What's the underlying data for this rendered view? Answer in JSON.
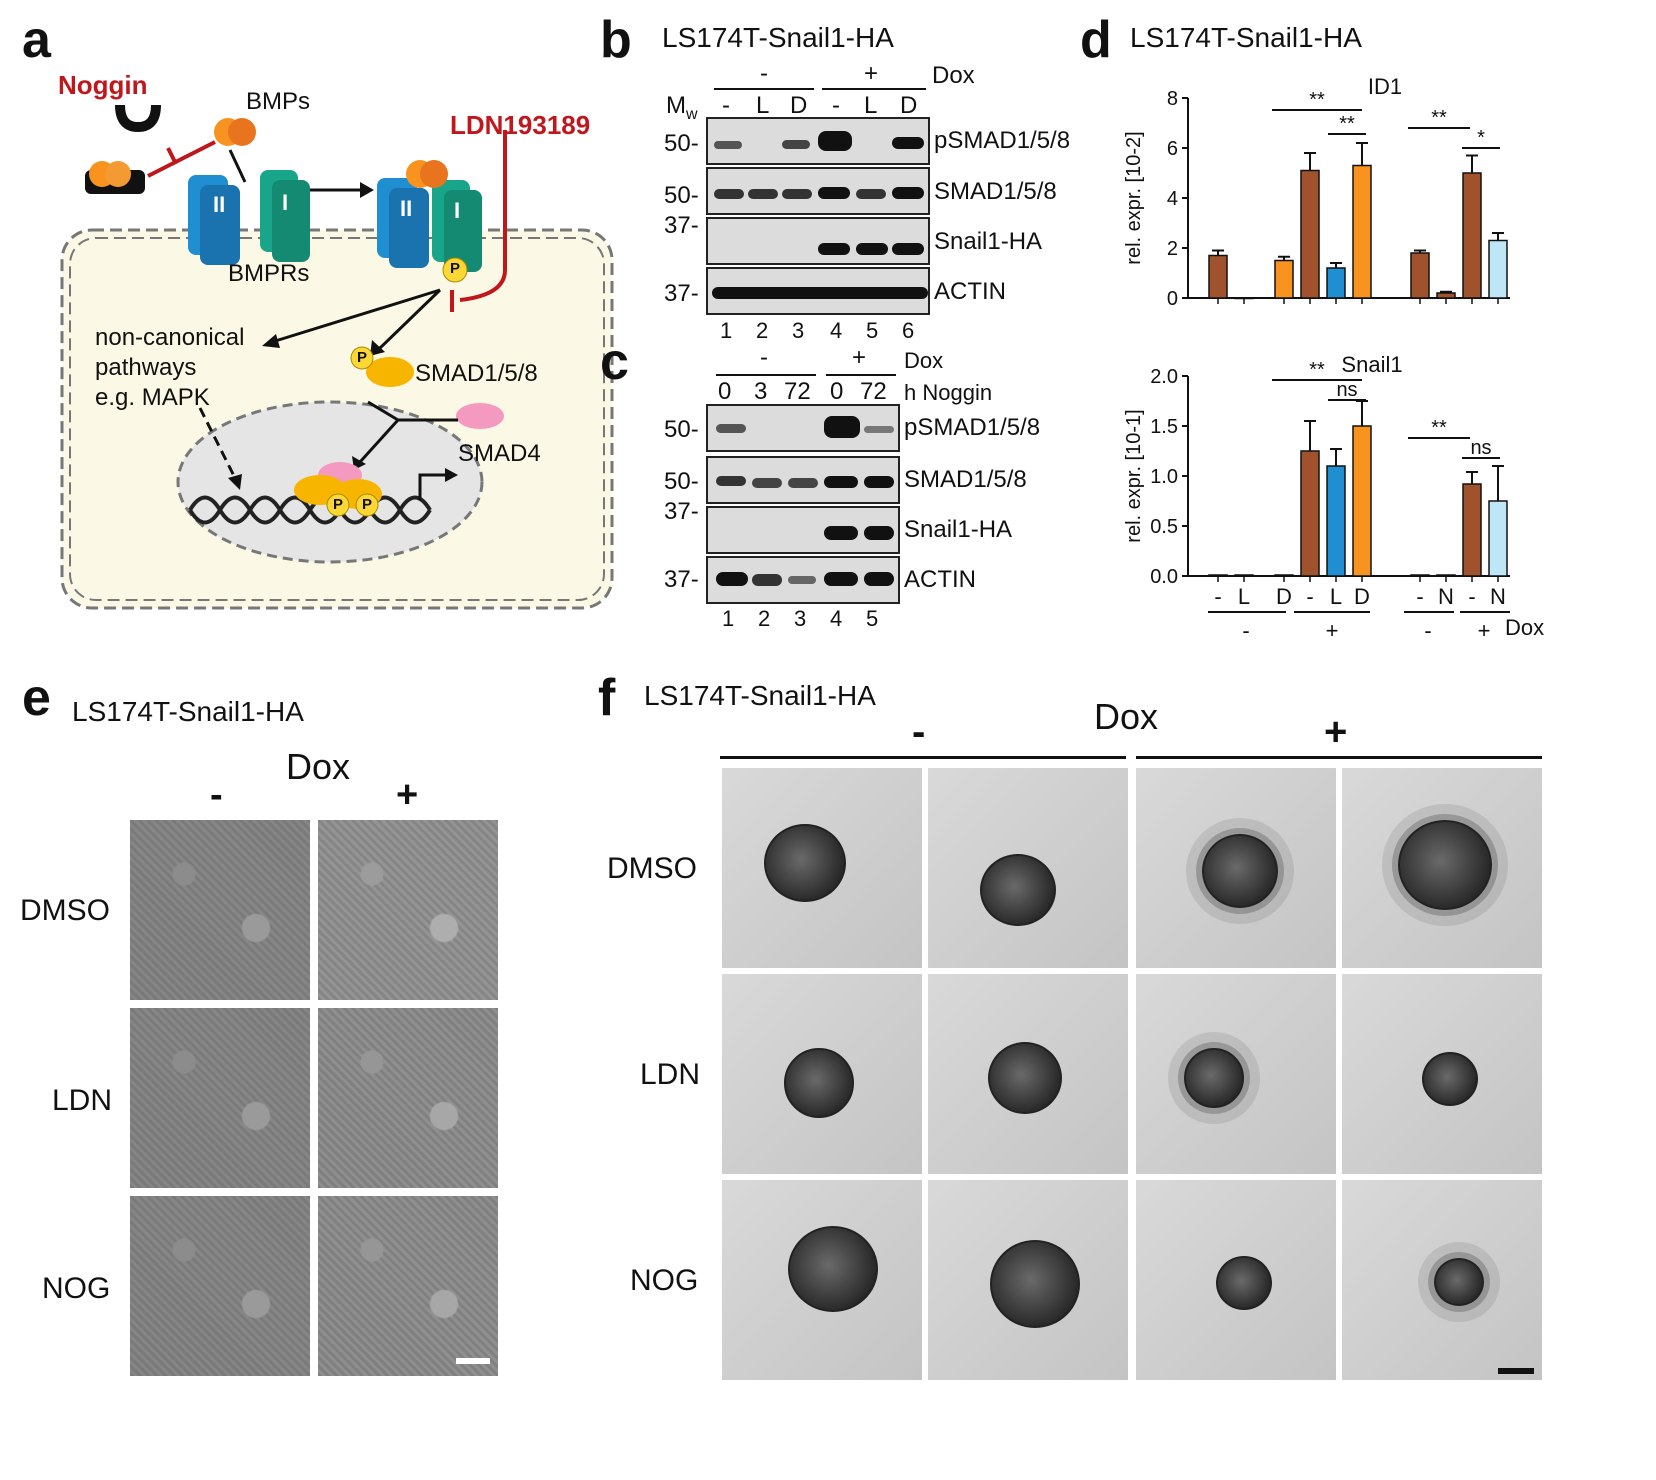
{
  "panels": {
    "a": {
      "label": "a",
      "noggin": "Noggin",
      "bmps": "BMPs",
      "ldn": "LDN193189",
      "bmprs": "BMPRs",
      "receptor_II": "II",
      "receptor_I": "I",
      "noncanonical": [
        "non-canonical",
        "pathways",
        "e.g. MAPK"
      ],
      "smad158": "SMAD1/5/8",
      "smad4": "SMAD4",
      "p": "P"
    },
    "b": {
      "label": "b",
      "title": "LS174T-Snail1-HA",
      "dox_minus": "-",
      "dox_plus": "+",
      "dox": "Dox",
      "mw": "M",
      "mw_sub": "w",
      "lanes_top": [
        "-",
        "L",
        "D",
        "-",
        "L",
        "D"
      ],
      "mw_marks": [
        "50-",
        "50-",
        "37-",
        "37-"
      ],
      "blots": [
        "pSMAD1/5/8",
        "SMAD1/5/8",
        "Snail1-HA",
        "ACTIN"
      ],
      "lane_numbers": [
        "1",
        "2",
        "3",
        "4",
        "5",
        "6"
      ]
    },
    "c": {
      "label": "c",
      "dox_minus": "-",
      "dox_plus": "+",
      "dox": "Dox",
      "hours": [
        "0",
        "3",
        "72",
        "0",
        "72"
      ],
      "hours_label": "h Noggin",
      "mw_marks": [
        "50-",
        "50-",
        "37-",
        "37-"
      ],
      "blots": [
        "pSMAD1/5/8",
        "SMAD1/5/8",
        "Snail1-HA",
        "ACTIN"
      ],
      "lane_numbers": [
        "1",
        "2",
        "3",
        "4",
        "5"
      ]
    },
    "d": {
      "label": "d",
      "title": "LS174T-Snail1-HA",
      "bottom_groups": [
        "-",
        "+",
        "-",
        "+"
      ],
      "bottom_lanes": [
        "-",
        "L",
        "D",
        "-",
        "L",
        "D",
        "-",
        "N",
        "-",
        "N"
      ],
      "dox": "Dox",
      "sig": [
        "**",
        "**",
        "**",
        "*",
        "**",
        "ns",
        "**",
        "ns"
      ]
    },
    "e": {
      "label": "e",
      "title": "LS174T-Snail1-HA",
      "dox": "Dox",
      "minus": "-",
      "plus": "+",
      "rows": [
        "DMSO",
        "LDN",
        "NOG"
      ]
    },
    "f": {
      "label": "f",
      "title": "LS174T-Snail1-HA",
      "dox": "Dox",
      "minus": "-",
      "plus": "+",
      "rows": [
        "DMSO",
        "LDN",
        "NOG"
      ]
    }
  },
  "chart_data": [
    {
      "type": "bar",
      "title": "ID1",
      "ylabel": "rel. expr. [10-2]",
      "ylim": [
        0,
        8
      ],
      "yticks": [
        "0",
        "2",
        "4",
        "6",
        "8"
      ],
      "categories": [
        "-",
        "L",
        "D",
        "-",
        "L",
        "D",
        "-",
        "N",
        "-",
        "N"
      ],
      "values": [
        1.7,
        0,
        1.5,
        5.1,
        1.2,
        5.3,
        1.8,
        0.2,
        5.0,
        2.3
      ],
      "errors": [
        0.2,
        0,
        0.15,
        0.7,
        0.2,
        0.9,
        0.1,
        0.05,
        0.7,
        0.3
      ],
      "colors": [
        "#a0522d",
        "#a0522d",
        "#f7931e",
        "#a0522d",
        "#1f8fd1",
        "#f7931e",
        "#a0522d",
        "#a0522d",
        "#a0522d",
        "#bfe6f7"
      ]
    },
    {
      "type": "bar",
      "title": "Snail1",
      "ylabel": "rel. expr. [10-1]",
      "ylim": [
        0,
        2
      ],
      "yticks": [
        "0.0",
        "0.5",
        "1.0",
        "1.5",
        "2.0"
      ],
      "categories": [
        "-",
        "L",
        "D",
        "-",
        "L",
        "D",
        "-",
        "N",
        "-",
        "N"
      ],
      "values": [
        0.01,
        0.01,
        0.01,
        1.25,
        1.1,
        1.5,
        0.01,
        0.01,
        0.92,
        0.75
      ],
      "errors": [
        0,
        0,
        0,
        0.3,
        0.17,
        0.25,
        0,
        0,
        0.12,
        0.35
      ],
      "colors": [
        "#a0522d",
        "#a0522d",
        "#f7931e",
        "#a0522d",
        "#1f8fd1",
        "#f7931e",
        "#a0522d",
        "#a0522d",
        "#a0522d",
        "#bfe6f7"
      ]
    }
  ]
}
